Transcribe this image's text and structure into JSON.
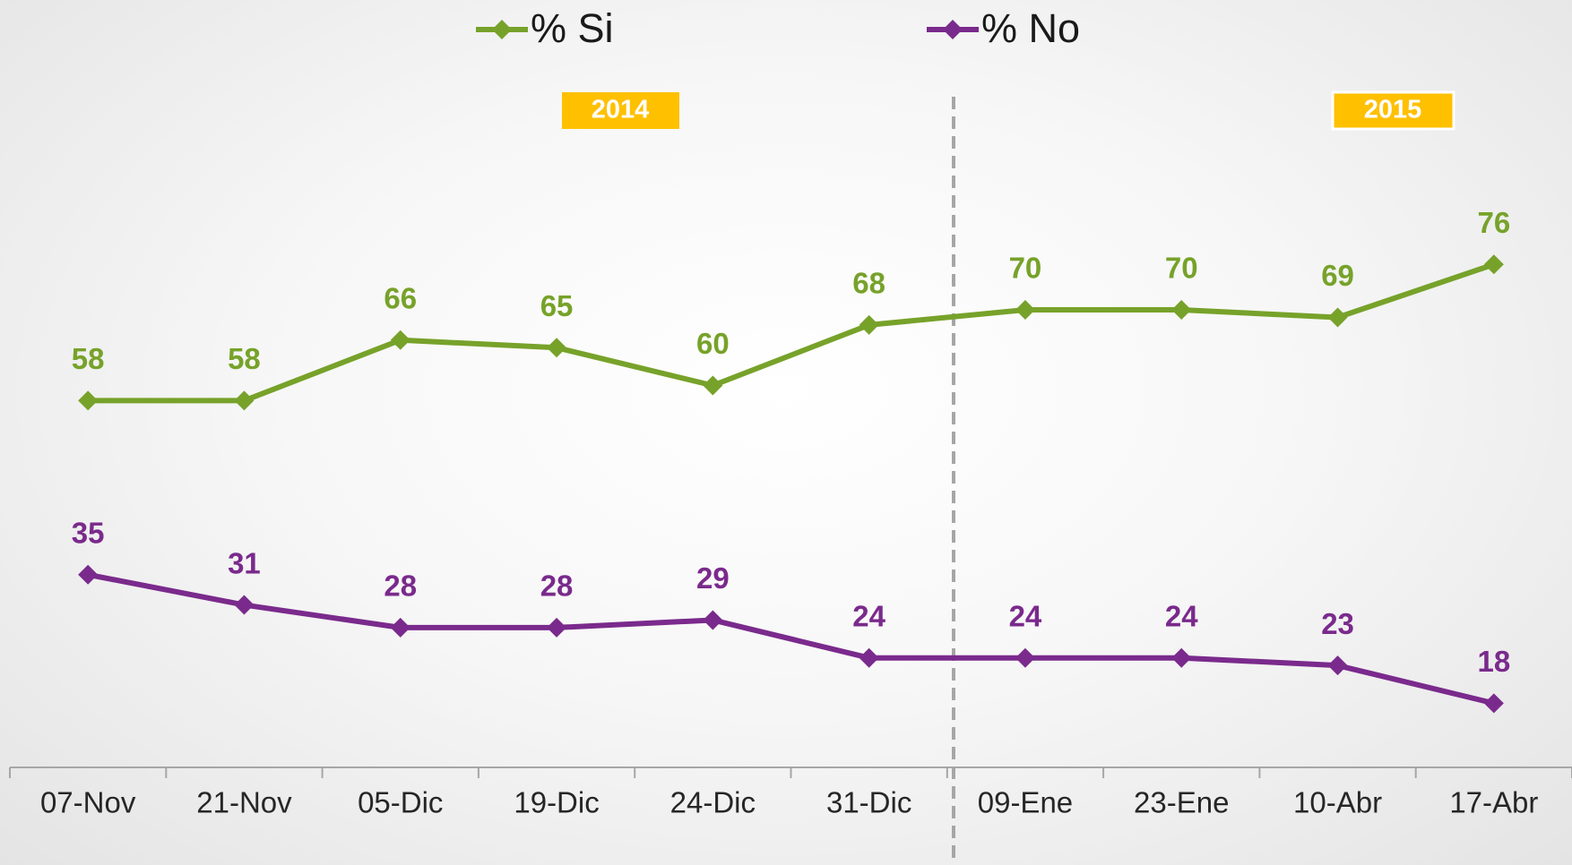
{
  "chart_data": {
    "type": "line",
    "categories": [
      "07-Nov",
      "21-Nov",
      "05-Dic",
      "19-Dic",
      "24-Dic",
      "31-Dic",
      "09-Ene",
      "23-Ene",
      "10-Abr",
      "17-Abr"
    ],
    "series": [
      {
        "name": "% Si",
        "color": "#77a22a",
        "values": [
          58,
          58,
          66,
          65,
          60,
          68,
          70,
          70,
          69,
          76
        ]
      },
      {
        "name": "% No",
        "color": "#7a2a8c",
        "values": [
          35,
          31,
          28,
          28,
          29,
          24,
          24,
          24,
          23,
          18
        ]
      }
    ],
    "annotations": [
      "2014",
      "2015"
    ],
    "ylim": [
      10,
      80
    ],
    "legend": "top"
  }
}
